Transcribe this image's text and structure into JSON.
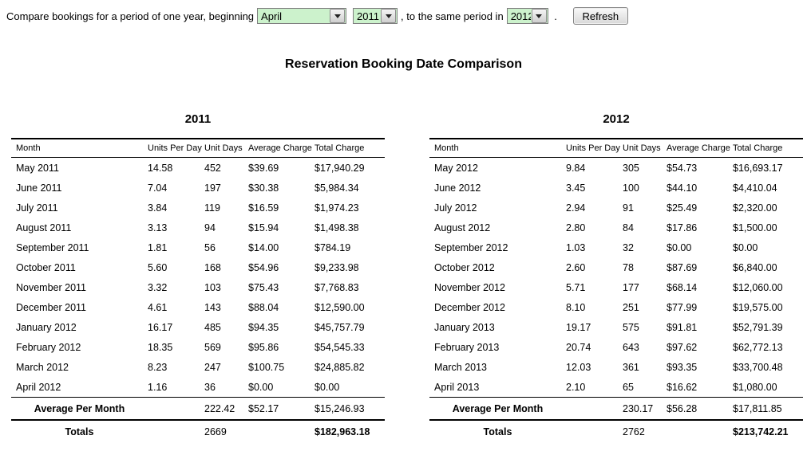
{
  "controls": {
    "prefix_text": "Compare bookings for a period of one year, beginning",
    "month_value": "April",
    "start_year_value": "2011",
    "middle_text": ", to the same period in",
    "end_year_value": "2012",
    "suffix_text": " . ",
    "refresh_label": "Refresh"
  },
  "page_title": "Reservation Booking Date Comparison",
  "colors": {
    "select_bg": "#ccf2cc",
    "text": "#000000",
    "background": "#ffffff"
  },
  "tables": [
    {
      "year": "2011",
      "columns": [
        "Month",
        "Units Per Day",
        "Unit Days",
        "Average Charge",
        "Total Charge"
      ],
      "rows": [
        [
          "May 2011",
          "14.58",
          "452",
          "$39.69",
          "$17,940.29"
        ],
        [
          "June 2011",
          "7.04",
          "197",
          "$30.38",
          "$5,984.34"
        ],
        [
          "July 2011",
          "3.84",
          "119",
          "$16.59",
          "$1,974.23"
        ],
        [
          "August 2011",
          "3.13",
          "94",
          "$15.94",
          "$1,498.38"
        ],
        [
          "September 2011",
          "1.81",
          "56",
          "$14.00",
          "$784.19"
        ],
        [
          "October 2011",
          "5.60",
          "168",
          "$54.96",
          "$9,233.98"
        ],
        [
          "November 2011",
          "3.32",
          "103",
          "$75.43",
          "$7,768.83"
        ],
        [
          "December 2011",
          "4.61",
          "143",
          "$88.04",
          "$12,590.00"
        ],
        [
          "January 2012",
          "16.17",
          "485",
          "$94.35",
          "$45,757.79"
        ],
        [
          "February 2012",
          "18.35",
          "569",
          "$95.86",
          "$54,545.33"
        ],
        [
          "March 2012",
          "8.23",
          "247",
          "$100.75",
          "$24,885.82"
        ],
        [
          "April 2012",
          "1.16",
          "36",
          "$0.00",
          "$0.00"
        ]
      ],
      "average_row": [
        "Average Per Month",
        "",
        "222.42",
        "$52.17",
        "$15,246.93"
      ],
      "totals_row": [
        "Totals",
        "",
        "2669",
        "",
        "$182,963.18"
      ]
    },
    {
      "year": "2012",
      "columns": [
        "Month",
        "Units Per Day",
        "Unit Days",
        "Average Charge",
        "Total Charge"
      ],
      "rows": [
        [
          "May 2012",
          "9.84",
          "305",
          "$54.73",
          "$16,693.17"
        ],
        [
          "June 2012",
          "3.45",
          "100",
          "$44.10",
          "$4,410.04"
        ],
        [
          "July 2012",
          "2.94",
          "91",
          "$25.49",
          "$2,320.00"
        ],
        [
          "August 2012",
          "2.80",
          "84",
          "$17.86",
          "$1,500.00"
        ],
        [
          "September 2012",
          "1.03",
          "32",
          "$0.00",
          "$0.00"
        ],
        [
          "October 2012",
          "2.60",
          "78",
          "$87.69",
          "$6,840.00"
        ],
        [
          "November 2012",
          "5.71",
          "177",
          "$68.14",
          "$12,060.00"
        ],
        [
          "December 2012",
          "8.10",
          "251",
          "$77.99",
          "$19,575.00"
        ],
        [
          "January 2013",
          "19.17",
          "575",
          "$91.81",
          "$52,791.39"
        ],
        [
          "February 2013",
          "20.74",
          "643",
          "$97.62",
          "$62,772.13"
        ],
        [
          "March 2013",
          "12.03",
          "361",
          "$93.35",
          "$33,700.48"
        ],
        [
          "April 2013",
          "2.10",
          "65",
          "$16.62",
          "$1,080.00"
        ]
      ],
      "average_row": [
        "Average Per Month",
        "",
        "230.17",
        "$56.28",
        "$17,811.85"
      ],
      "totals_row": [
        "Totals",
        "",
        "2762",
        "",
        "$213,742.21"
      ]
    }
  ]
}
